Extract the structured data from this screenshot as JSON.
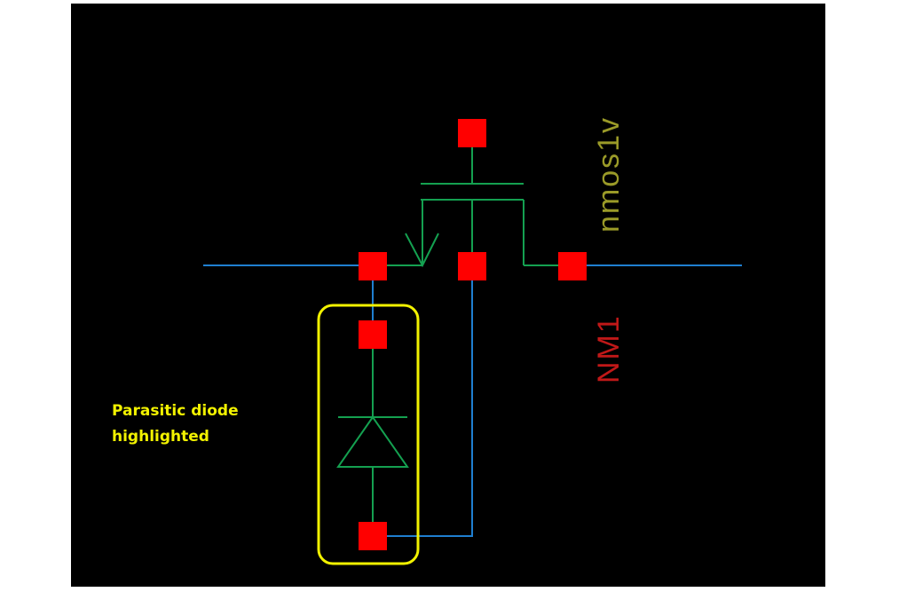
{
  "labels": {
    "model": "nmos1v",
    "instance": "NM1",
    "callout_line1": "Parasitic diode",
    "callout_line2": "highlighted"
  },
  "colors": {
    "page_bg": "#ffffff",
    "canvas_bg": "#000000",
    "wire": "#1f7fd0",
    "device": "#14a050",
    "pin": "#ff0000",
    "model_text": "#9a9a28",
    "instance_text": "#c01818",
    "highlight": "#f2f200"
  },
  "icons": {
    "transistor": "nmos-transistor-symbol",
    "diode": "diode-symbol",
    "pin": "square-pin"
  }
}
